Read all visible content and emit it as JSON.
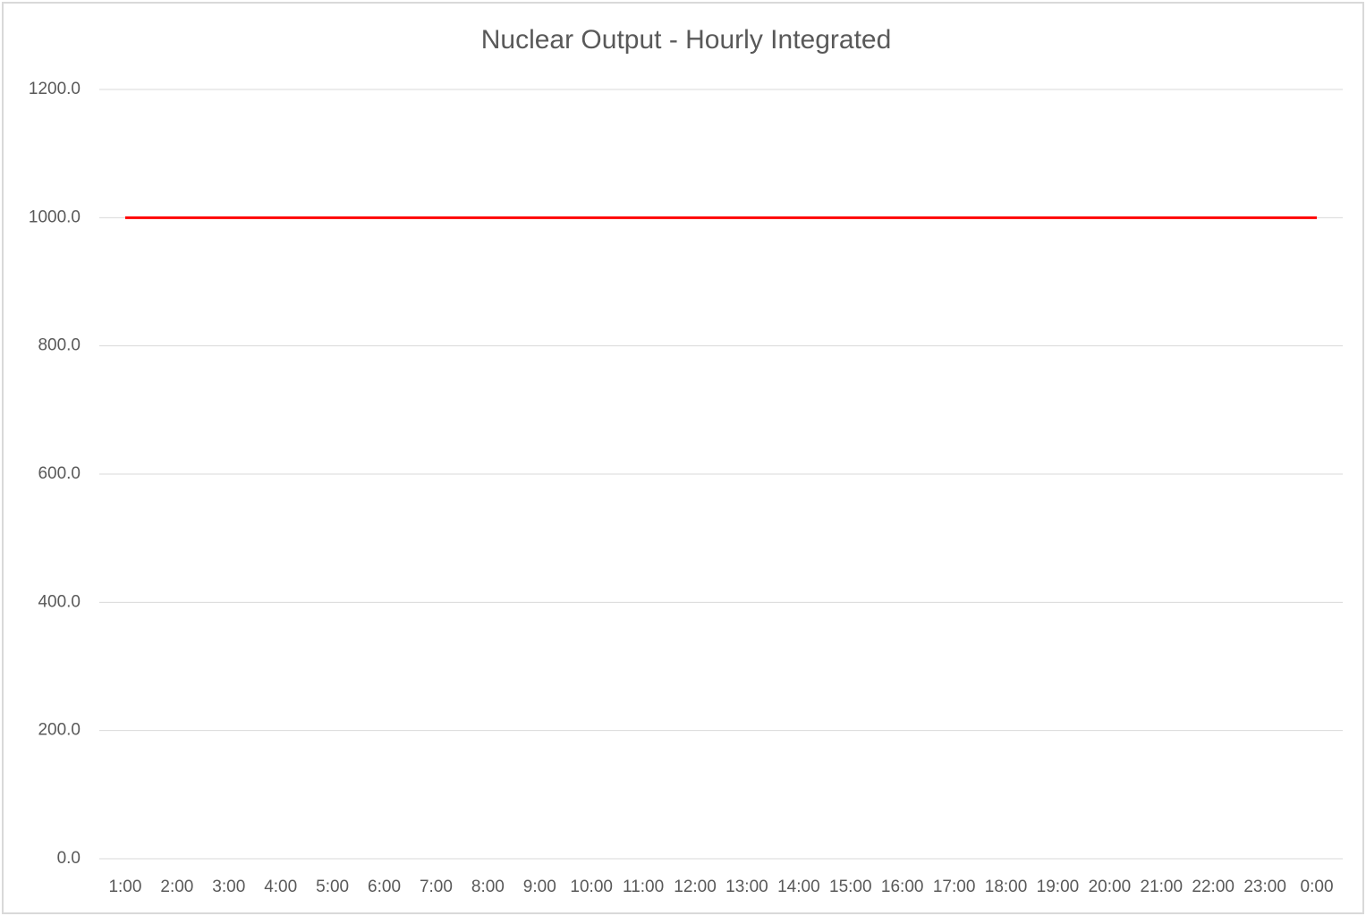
{
  "chart_data": {
    "type": "line",
    "title": "Nuclear Output - Hourly Integrated",
    "categories": [
      "1:00",
      "2:00",
      "3:00",
      "4:00",
      "5:00",
      "6:00",
      "7:00",
      "8:00",
      "9:00",
      "10:00",
      "11:00",
      "12:00",
      "13:00",
      "14:00",
      "15:00",
      "16:00",
      "17:00",
      "18:00",
      "19:00",
      "20:00",
      "21:00",
      "22:00",
      "23:00",
      "0:00"
    ],
    "series": [
      {
        "color": "#ff0000",
        "values": [
          1000,
          1000,
          1000,
          1000,
          1000,
          1000,
          1000,
          1000,
          1000,
          1000,
          1000,
          1000,
          1000,
          1000,
          1000,
          1000,
          1000,
          1000,
          1000,
          1000,
          1000,
          1000,
          1000,
          1000
        ]
      }
    ],
    "ylim": [
      0,
      1200
    ],
    "yticks": [
      {
        "value": 0,
        "label": "0.0"
      },
      {
        "value": 200,
        "label": "200.0"
      },
      {
        "value": 400,
        "label": "400.0"
      },
      {
        "value": 600,
        "label": "600.0"
      },
      {
        "value": 800,
        "label": "800.0"
      },
      {
        "value": 1000,
        "label": "1000.0"
      },
      {
        "value": 1200,
        "label": "1200.0"
      }
    ],
    "grid": true
  }
}
